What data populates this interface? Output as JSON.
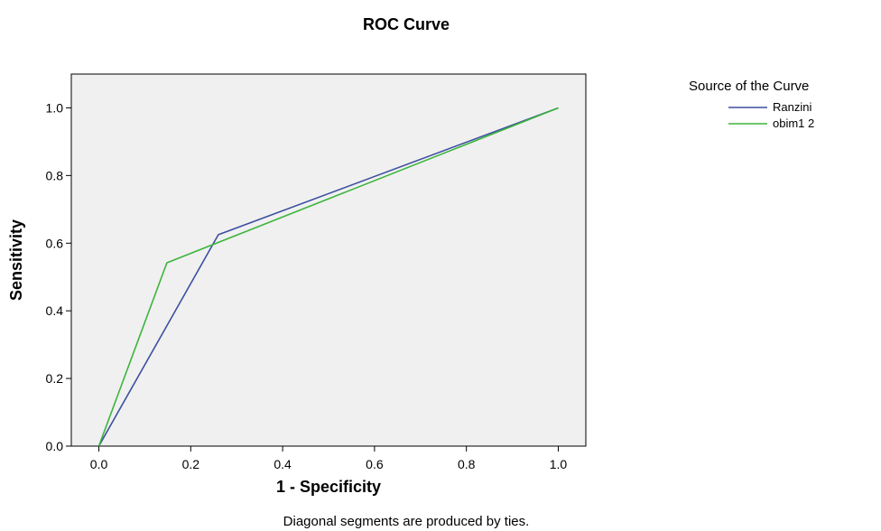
{
  "chart_data": {
    "type": "line",
    "title": "ROC Curve",
    "xlabel": "1 - Specificity",
    "ylabel": "Sensitivity",
    "xlim": [
      -0.06,
      1.06
    ],
    "ylim": [
      0,
      1.1
    ],
    "x_ticks": [
      "0.0",
      "0.2",
      "0.4",
      "0.6",
      "0.8",
      "1.0"
    ],
    "y_ticks": [
      "0.0",
      "0.2",
      "0.4",
      "0.6",
      "0.8",
      "1.0"
    ],
    "grid": false,
    "plot_background": "#f0f0f0",
    "legend": {
      "title": "Source of the Curve",
      "position": "right"
    },
    "series": [
      {
        "name": "Ranzini",
        "color": "#3d4fa0",
        "x": [
          0.0,
          0.26,
          1.0
        ],
        "y": [
          0.0,
          0.625,
          1.0
        ]
      },
      {
        "name": "obim1 2",
        "color": "#3cb43c",
        "x": [
          0.0,
          0.148,
          1.0
        ],
        "y": [
          0.0,
          0.542,
          1.0
        ]
      }
    ],
    "footnote": "Diagonal segments are produced by ties."
  }
}
